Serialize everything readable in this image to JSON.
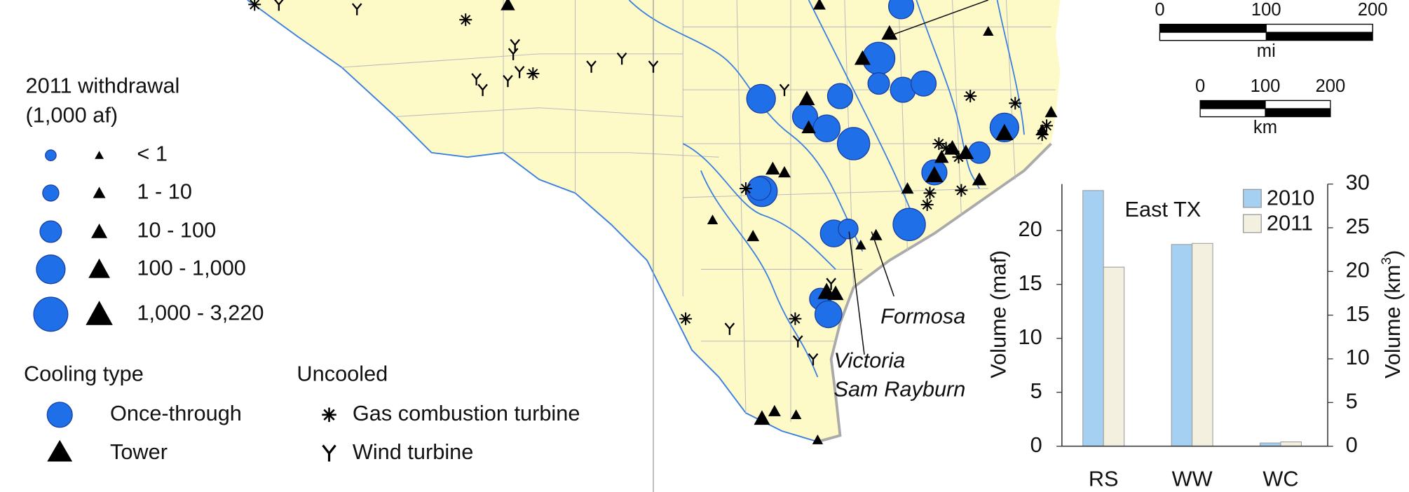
{
  "legend": {
    "title": "2011 withdrawal",
    "units": "(1,000 af)",
    "classes": [
      "< 1",
      "1 - 10",
      "10 - 100",
      "100 - 1,000",
      "1,000 - 3,220"
    ],
    "cooling_title": "Cooling type",
    "cooling_types": [
      "Once-through",
      "Tower"
    ],
    "uncooled_title": "Uncooled",
    "uncooled_types": [
      "Gas combustion turbine",
      "Wind turbine"
    ]
  },
  "annotations": [
    "Formosa",
    "Victoria",
    "Sam Rayburn"
  ],
  "scale_bars": [
    {
      "ticks": [
        0,
        100,
        200
      ],
      "unit": "mi"
    },
    {
      "ticks": [
        0,
        100,
        200
      ],
      "unit": "km"
    }
  ],
  "chart_data": {
    "type": "bar",
    "annotation": "East TX",
    "categories": [
      "RS",
      "WW",
      "WC"
    ],
    "series": [
      {
        "name": "2010",
        "color": "#a6d0f2",
        "values": [
          23.7,
          18.7,
          0.3
        ]
      },
      {
        "name": "2011",
        "color": "#f3f0e0",
        "values": [
          16.6,
          18.8,
          0.4
        ]
      }
    ],
    "ylim": [
      0,
      24.3
    ],
    "yticks": [
      0,
      5,
      10,
      15,
      20
    ],
    "y_label": "Volume (maf)",
    "y2lim": [
      0,
      30
    ],
    "y2ticks": [
      0,
      5,
      10,
      15,
      20,
      25,
      30
    ],
    "y2_label": [
      "Volume (km",
      "3",
      ")"
    ],
    "legend": "top-right"
  }
}
